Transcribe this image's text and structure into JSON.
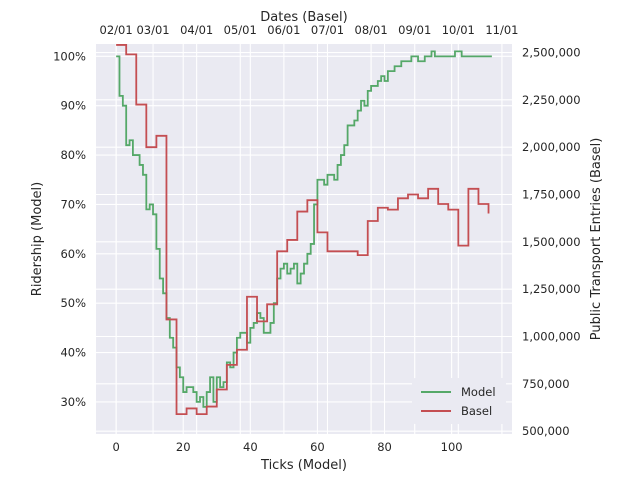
{
  "chart_data": {
    "type": "line",
    "step": true,
    "grid": true,
    "legend_placement": "lower-right",
    "xlabel": "Ticks (Model)",
    "xlabel_top": "Dates (Basel)",
    "ylabel_left": "Ridership (Model)",
    "ylabel_right": "Public Transport Entries (Basel)",
    "x_ticks": [
      0,
      20,
      40,
      60,
      80,
      100
    ],
    "x_tick_labels": [
      "0",
      "20",
      "40",
      "60",
      "80",
      "100"
    ],
    "top_tick_labels": [
      "02/01",
      "03/01",
      "04/01",
      "05/01",
      "06/01",
      "07/01",
      "08/01",
      "09/01",
      "10/01",
      "11/01"
    ],
    "top_tick_ticks": [
      0,
      11,
      24,
      37,
      50,
      63,
      76,
      89,
      102,
      115
    ],
    "left_ticks": [
      30,
      40,
      50,
      60,
      70,
      80,
      90,
      100
    ],
    "left_tick_labels": [
      "30%",
      "40%",
      "50%",
      "60%",
      "70%",
      "80%",
      "90%",
      "100%"
    ],
    "right_ticks": [
      500000,
      750000,
      1000000,
      1250000,
      1500000,
      1750000,
      2000000,
      2250000,
      2500000
    ],
    "right_tick_labels": [
      "500,000",
      "750,000",
      "1,000,000",
      "1,250,000",
      "1,500,000",
      "1,750,000",
      "2,000,000",
      "2,250,000",
      "2,500,000"
    ],
    "xlim": [
      -6,
      118
    ],
    "ylim_left": [
      23.5,
      102.5
    ],
    "ylim_right": [
      485000,
      2545000
    ],
    "series": [
      {
        "name": "Model",
        "axis": "left",
        "color": "#55a868",
        "x": [
          0,
          1,
          2,
          3,
          4,
          5,
          6,
          7,
          8,
          9,
          10,
          11,
          12,
          13,
          14,
          15,
          16,
          17,
          18,
          19,
          20,
          21,
          22,
          23,
          24,
          25,
          26,
          27,
          28,
          29,
          30,
          31,
          32,
          33,
          34,
          35,
          36,
          37,
          38,
          39,
          40,
          41,
          42,
          43,
          44,
          45,
          46,
          47,
          48,
          49,
          50,
          51,
          52,
          53,
          54,
          55,
          56,
          57,
          58,
          59,
          60,
          61,
          62,
          63,
          64,
          65,
          66,
          67,
          68,
          69,
          70,
          71,
          72,
          73,
          74,
          75,
          76,
          77,
          78,
          79,
          80,
          81,
          82,
          83,
          84,
          85,
          86,
          87,
          88,
          89,
          90,
          91,
          92,
          93,
          94,
          95,
          96,
          97,
          98,
          99,
          100,
          101,
          102,
          103,
          104,
          105,
          106,
          107,
          108,
          109,
          110,
          111,
          112
        ],
        "values": [
          100,
          92,
          90,
          82,
          83,
          80,
          80,
          78,
          76,
          69,
          70,
          68,
          61,
          55,
          52,
          47,
          43,
          41,
          37,
          35,
          32,
          33,
          33,
          32,
          30,
          31,
          29,
          32,
          35,
          30,
          35,
          33,
          34,
          38,
          37,
          40,
          43,
          44,
          44,
          42,
          45,
          46,
          48,
          47,
          44,
          44,
          46,
          50,
          55,
          57,
          58,
          56,
          57,
          58,
          54,
          56,
          58,
          60,
          62,
          70,
          75,
          75,
          74,
          76,
          76,
          75,
          78,
          80,
          82,
          86,
          86,
          87,
          89,
          91,
          90,
          93,
          94,
          94,
          95,
          96,
          95,
          97,
          97,
          98,
          98,
          99,
          99,
          99,
          100,
          100,
          99,
          99,
          100,
          100,
          101,
          100,
          100,
          100,
          100,
          100,
          100,
          101,
          101,
          100,
          100,
          100,
          100,
          100,
          100,
          100,
          100,
          100,
          100
        ]
      },
      {
        "name": "Basel",
        "axis": "right",
        "color": "#c44e52",
        "x": [
          0,
          3,
          6,
          9,
          12,
          15,
          18,
          21,
          24,
          27,
          30,
          33,
          36,
          39,
          42,
          45,
          48,
          51,
          54,
          57,
          60,
          63,
          66,
          69,
          72,
          75,
          78,
          81,
          84,
          87,
          90,
          93,
          96,
          99,
          102,
          105,
          108,
          111
        ],
        "values": [
          2540000,
          2490000,
          2225000,
          2000000,
          2060000,
          1090000,
          590000,
          620000,
          590000,
          630000,
          720000,
          850000,
          930000,
          1210000,
          1080000,
          1170000,
          1450000,
          1510000,
          1660000,
          1720000,
          1550000,
          1450000,
          1450000,
          1450000,
          1430000,
          1610000,
          1680000,
          1670000,
          1730000,
          1750000,
          1730000,
          1780000,
          1700000,
          1670000,
          1480000,
          1780000,
          1700000,
          1650000
        ]
      }
    ]
  }
}
